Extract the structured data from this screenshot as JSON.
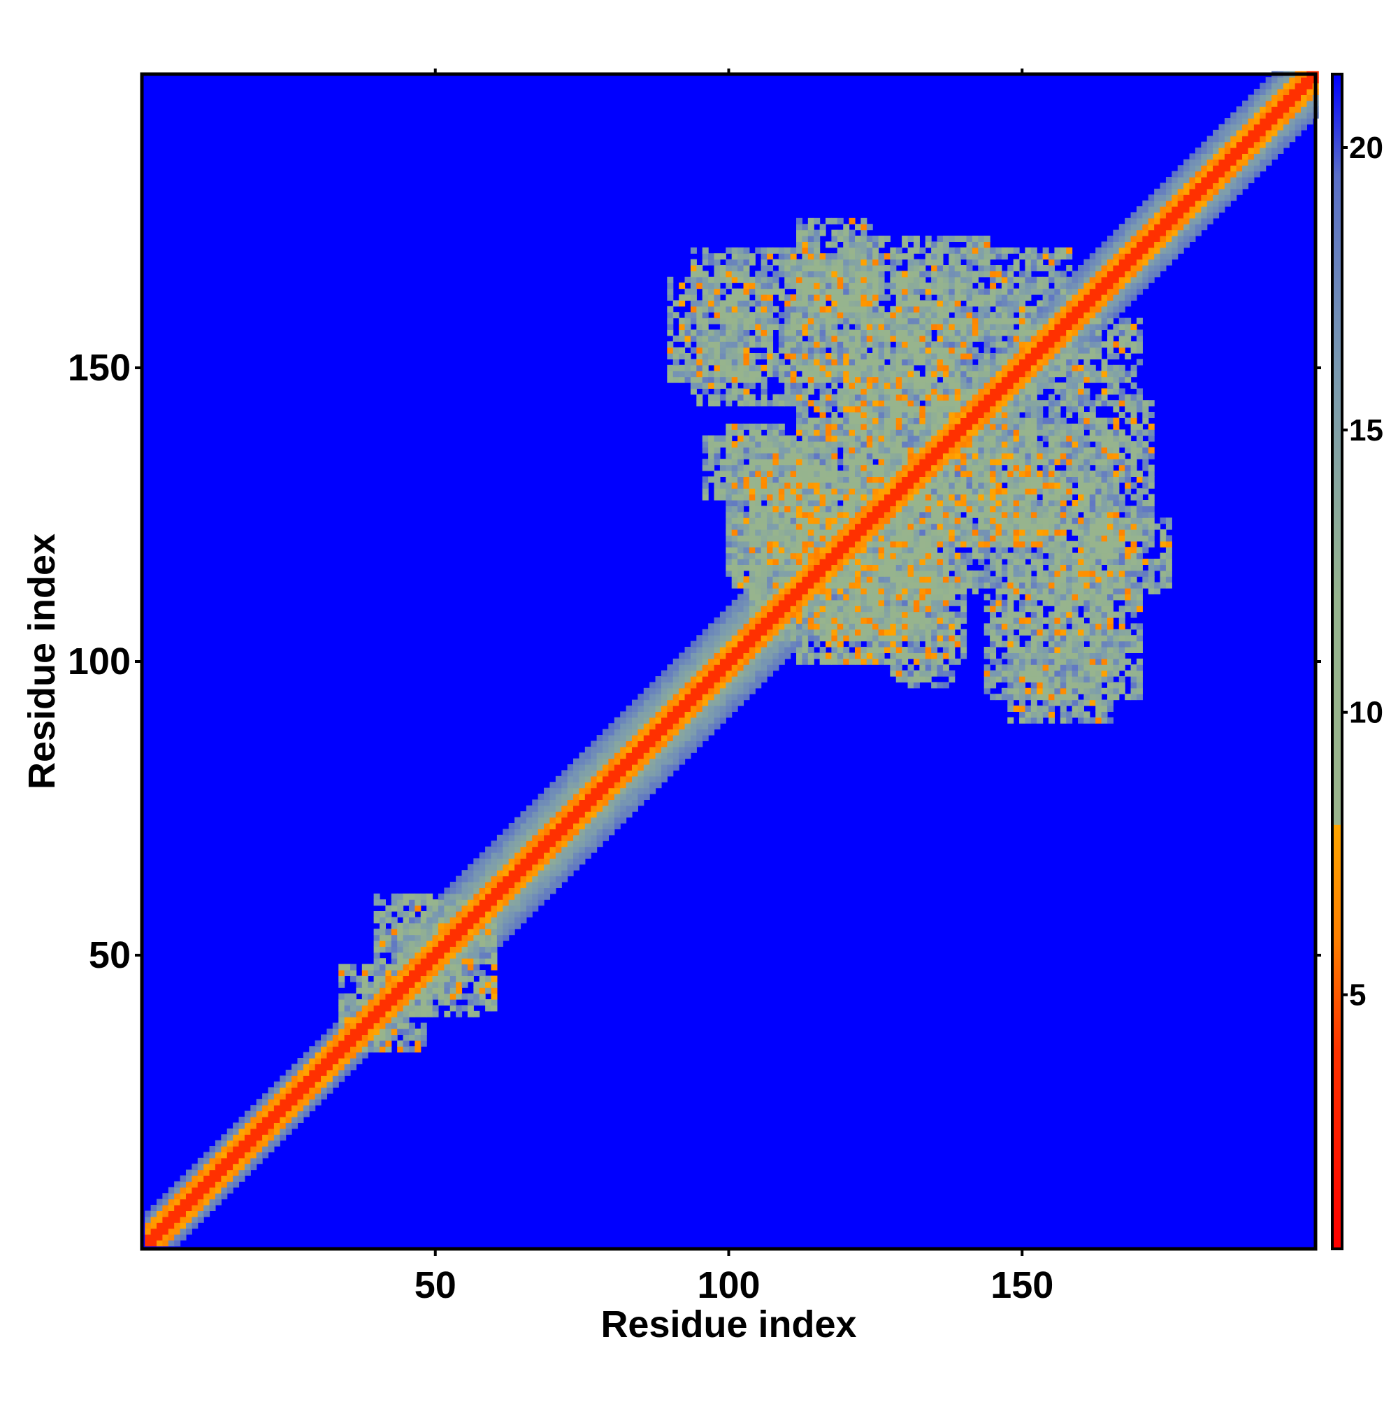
{
  "chart_data": {
    "type": "heatmap",
    "title": "",
    "xlabel": "Residue index",
    "ylabel": "Residue index",
    "xlim": [
      1,
      200
    ],
    "ylim": [
      1,
      200
    ],
    "x_ticks": [
      50,
      100,
      150
    ],
    "y_ticks": [
      50,
      100,
      150
    ],
    "colorbar": {
      "range": [
        0.5,
        21.3
      ],
      "ticks": [
        5,
        10,
        15,
        20
      ],
      "position": "right",
      "stops": [
        {
          "value": 0.5,
          "color": "#ff0000"
        },
        {
          "value": 4.0,
          "color": "#ff3300"
        },
        {
          "value": 6.0,
          "color": "#ff8000"
        },
        {
          "value": 8.0,
          "color": "#ffa500"
        },
        {
          "value": 8.01,
          "color": "#9ab48c"
        },
        {
          "value": 12.0,
          "color": "#96b48e"
        },
        {
          "value": 16.0,
          "color": "#7a9ab0"
        },
        {
          "value": 19.5,
          "color": "#5a6fc8"
        },
        {
          "value": 21.3,
          "color": "#0000ff"
        }
      ]
    },
    "background_value": 21.3,
    "grid": false,
    "matrix_description_for_generation": null,
    "diagonal_band": [
      {
        "from": 1,
        "to": 46,
        "half_width": 5
      },
      {
        "from": 46,
        "to": 108,
        "half_width": 9
      },
      {
        "from": 108,
        "to": 200,
        "half_width": 7
      }
    ],
    "contact_blocks": [
      {
        "x": [
          40,
          60
        ],
        "y": [
          40,
          60
        ]
      },
      {
        "x": [
          34,
          48
        ],
        "y": [
          34,
          48
        ]
      },
      {
        "x": [
          90,
          200
        ],
        "y": [
          90,
          200
        ]
      }
    ],
    "contact_clusters": [
      {
        "x": [
          90,
          107
        ],
        "y": [
          148,
          165
        ]
      },
      {
        "x": [
          111,
          125
        ],
        "y": [
          148,
          170
        ]
      },
      {
        "x": [
          129,
          140
        ],
        "y": [
          140,
          166
        ]
      },
      {
        "x": [
          144,
          158
        ],
        "y": [
          150,
          170
        ]
      },
      {
        "x": [
          96,
          115
        ],
        "y": [
          128,
          138
        ]
      },
      {
        "x": [
          104,
          132
        ],
        "y": [
          104,
          130
        ]
      },
      {
        "x": [
          120,
          152
        ],
        "y": [
          120,
          150
        ]
      },
      {
        "x": [
          152,
          172
        ],
        "y": [
          122,
          144
        ]
      },
      {
        "x": [
          100,
          124
        ],
        "y": [
          112,
          128
        ]
      },
      {
        "x": [
          116,
          140
        ],
        "y": [
          100,
          118
        ]
      },
      {
        "x": [
          130,
          165
        ],
        "y": [
          112,
          130
        ]
      },
      {
        "x": [
          144,
          170
        ],
        "y": [
          94,
          112
        ]
      },
      {
        "x": [
          160,
          175
        ],
        "y": [
          112,
          124
        ]
      }
    ]
  }
}
